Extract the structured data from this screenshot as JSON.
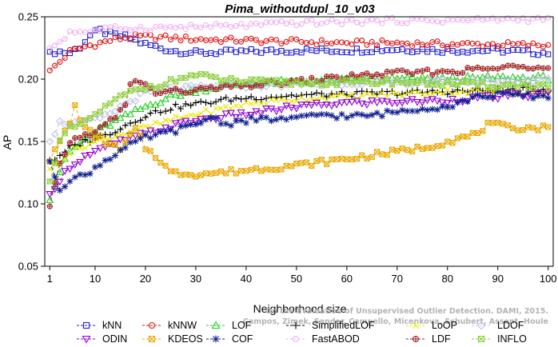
{
  "chart_data": {
    "type": "line",
    "title": "Pima_withoutdupl_10_v03",
    "xlabel": "Neighborhood size",
    "ylabel": "AP",
    "xlim": [
      0,
      101
    ],
    "ylim": [
      0.05,
      0.25
    ],
    "xticks": [
      1,
      10,
      20,
      30,
      40,
      50,
      60,
      70,
      80,
      90,
      100
    ],
    "yticks": [
      0.05,
      0.1,
      0.15,
      0.2,
      0.25
    ],
    "ytick_labels": [
      "0.05",
      "0.10",
      "0.15",
      "0.20",
      "0.25"
    ],
    "grid": false,
    "legend_position": "bottom",
    "watermark": [
      "On the Evaluation of Unsupervised Outlier Detection. DAMI, 2015.",
      "Campos, Zimek, Sander, Campello, Micenkova, Schubert, Assent, Houle"
    ],
    "series": [
      {
        "name": "kNN",
        "color": "#1f1fd0",
        "marker": "square",
        "keypoints": [
          [
            1,
            0.222
          ],
          [
            3,
            0.222
          ],
          [
            5,
            0.221
          ],
          [
            7,
            0.226
          ],
          [
            9,
            0.235
          ],
          [
            11,
            0.239
          ],
          [
            13,
            0.236
          ],
          [
            16,
            0.234
          ],
          [
            20,
            0.228
          ],
          [
            25,
            0.223
          ],
          [
            30,
            0.221
          ],
          [
            40,
            0.222
          ],
          [
            50,
            0.223
          ],
          [
            60,
            0.223
          ],
          [
            70,
            0.224
          ],
          [
            80,
            0.223
          ],
          [
            90,
            0.223
          ],
          [
            100,
            0.221
          ]
        ]
      },
      {
        "name": "kNNW",
        "color": "#e01010",
        "marker": "circle",
        "keypoints": [
          [
            1,
            0.207
          ],
          [
            3,
            0.214
          ],
          [
            5,
            0.222
          ],
          [
            8,
            0.226
          ],
          [
            11,
            0.229
          ],
          [
            14,
            0.232
          ],
          [
            17,
            0.234
          ],
          [
            20,
            0.234
          ],
          [
            30,
            0.232
          ],
          [
            40,
            0.231
          ],
          [
            50,
            0.23
          ],
          [
            60,
            0.229
          ],
          [
            70,
            0.229
          ],
          [
            80,
            0.228
          ],
          [
            90,
            0.228
          ],
          [
            100,
            0.227
          ]
        ]
      },
      {
        "name": "LOF",
        "color": "#20d020",
        "marker": "triangle-up",
        "keypoints": [
          [
            1,
            0.103
          ],
          [
            3,
            0.126
          ],
          [
            5,
            0.142
          ],
          [
            8,
            0.152
          ],
          [
            12,
            0.162
          ],
          [
            16,
            0.17
          ],
          [
            20,
            0.178
          ],
          [
            25,
            0.186
          ],
          [
            30,
            0.191
          ],
          [
            35,
            0.194
          ],
          [
            40,
            0.196
          ],
          [
            50,
            0.198
          ],
          [
            60,
            0.199
          ],
          [
            70,
            0.2
          ],
          [
            80,
            0.2
          ],
          [
            90,
            0.201
          ],
          [
            100,
            0.201
          ]
        ]
      },
      {
        "name": "SimplifiedLOF",
        "color": "#000000",
        "marker": "plus",
        "keypoints": [
          [
            1,
            0.135
          ],
          [
            3,
            0.137
          ],
          [
            5,
            0.145
          ],
          [
            8,
            0.15
          ],
          [
            12,
            0.155
          ],
          [
            16,
            0.163
          ],
          [
            20,
            0.171
          ],
          [
            25,
            0.177
          ],
          [
            30,
            0.18
          ],
          [
            35,
            0.183
          ],
          [
            40,
            0.185
          ],
          [
            50,
            0.187
          ],
          [
            60,
            0.188
          ],
          [
            70,
            0.189
          ],
          [
            80,
            0.19
          ],
          [
            90,
            0.191
          ],
          [
            100,
            0.192
          ]
        ]
      },
      {
        "name": "LoOP",
        "color": "#e8e800",
        "marker": "x",
        "keypoints": [
          [
            1,
            0.128
          ],
          [
            3,
            0.135
          ],
          [
            5,
            0.141
          ],
          [
            8,
            0.147
          ],
          [
            12,
            0.152
          ],
          [
            16,
            0.157
          ],
          [
            20,
            0.161
          ],
          [
            25,
            0.167
          ],
          [
            30,
            0.172
          ],
          [
            35,
            0.176
          ],
          [
            40,
            0.18
          ],
          [
            50,
            0.184
          ],
          [
            60,
            0.186
          ],
          [
            70,
            0.188
          ],
          [
            80,
            0.19
          ],
          [
            90,
            0.19
          ],
          [
            100,
            0.189
          ]
        ]
      },
      {
        "name": "LDOF",
        "color": "#c0c0e8",
        "marker": "diamond",
        "keypoints": [
          [
            1,
            0.15
          ],
          [
            3,
            0.165
          ],
          [
            5,
            0.165
          ],
          [
            8,
            0.165
          ],
          [
            12,
            0.17
          ],
          [
            16,
            0.18
          ],
          [
            20,
            0.189
          ],
          [
            25,
            0.192
          ],
          [
            30,
            0.193
          ],
          [
            35,
            0.194
          ],
          [
            40,
            0.195
          ],
          [
            50,
            0.196
          ],
          [
            60,
            0.197
          ],
          [
            70,
            0.197
          ],
          [
            80,
            0.198
          ],
          [
            90,
            0.199
          ],
          [
            100,
            0.2
          ]
        ]
      },
      {
        "name": "ODIN",
        "color": "#9000d0",
        "marker": "triangle-down",
        "keypoints": [
          [
            1,
            0.108
          ],
          [
            3,
            0.12
          ],
          [
            5,
            0.13
          ],
          [
            8,
            0.138
          ],
          [
            12,
            0.145
          ],
          [
            16,
            0.152
          ],
          [
            20,
            0.156
          ],
          [
            25,
            0.162
          ],
          [
            30,
            0.167
          ],
          [
            35,
            0.17
          ],
          [
            40,
            0.172
          ],
          [
            50,
            0.178
          ],
          [
            60,
            0.181
          ],
          [
            70,
            0.182
          ],
          [
            80,
            0.183
          ],
          [
            90,
            0.186
          ],
          [
            100,
            0.188
          ]
        ]
      },
      {
        "name": "KDEOS",
        "color": "#e8a800",
        "marker": "square-x",
        "keypoints": [
          [
            1,
            0.134
          ],
          [
            3,
            0.15
          ],
          [
            5,
            0.165
          ],
          [
            6,
            0.178
          ],
          [
            8,
            0.16
          ],
          [
            12,
            0.15
          ],
          [
            15,
            0.143
          ],
          [
            18,
            0.16
          ],
          [
            20,
            0.145
          ],
          [
            23,
            0.135
          ],
          [
            25,
            0.125
          ],
          [
            30,
            0.124
          ],
          [
            35,
            0.125
          ],
          [
            40,
            0.127
          ],
          [
            50,
            0.131
          ],
          [
            60,
            0.136
          ],
          [
            70,
            0.142
          ],
          [
            75,
            0.145
          ],
          [
            80,
            0.15
          ],
          [
            85,
            0.155
          ],
          [
            88,
            0.163
          ],
          [
            90,
            0.163
          ],
          [
            92,
            0.161
          ],
          [
            100,
            0.161
          ]
        ]
      },
      {
        "name": "COF",
        "color": "#102090",
        "marker": "asterisk",
        "keypoints": [
          [
            1,
            0.134
          ],
          [
            3,
            0.112
          ],
          [
            5,
            0.12
          ],
          [
            8,
            0.123
          ],
          [
            12,
            0.135
          ],
          [
            16,
            0.145
          ],
          [
            20,
            0.153
          ],
          [
            25,
            0.158
          ],
          [
            30,
            0.163
          ],
          [
            33,
            0.17
          ],
          [
            36,
            0.164
          ],
          [
            40,
            0.167
          ],
          [
            45,
            0.168
          ],
          [
            50,
            0.168
          ],
          [
            55,
            0.172
          ],
          [
            60,
            0.17
          ],
          [
            65,
            0.171
          ],
          [
            70,
            0.174
          ],
          [
            75,
            0.177
          ],
          [
            80,
            0.178
          ],
          [
            85,
            0.185
          ],
          [
            90,
            0.188
          ],
          [
            100,
            0.186
          ]
        ]
      },
      {
        "name": "FastABOD",
        "color": "#f0b0f0",
        "marker": "circle",
        "keypoints": [
          [
            1,
            0.225
          ],
          [
            3,
            0.23
          ],
          [
            5,
            0.238
          ],
          [
            8,
            0.238
          ],
          [
            12,
            0.24
          ],
          [
            16,
            0.241
          ],
          [
            20,
            0.241
          ],
          [
            30,
            0.242
          ],
          [
            40,
            0.243
          ],
          [
            50,
            0.245
          ],
          [
            60,
            0.246
          ],
          [
            70,
            0.247
          ],
          [
            80,
            0.247
          ],
          [
            90,
            0.248
          ],
          [
            100,
            0.248
          ]
        ]
      },
      {
        "name": "LDF",
        "color": "#a02020",
        "marker": "circle-plus",
        "keypoints": [
          [
            1,
            0.098
          ],
          [
            3,
            0.131
          ],
          [
            5,
            0.15
          ],
          [
            8,
            0.155
          ],
          [
            11,
            0.16
          ],
          [
            14,
            0.17
          ],
          [
            16,
            0.178
          ],
          [
            17,
            0.195
          ],
          [
            18,
            0.2
          ],
          [
            20,
            0.195
          ],
          [
            22,
            0.189
          ],
          [
            25,
            0.19
          ],
          [
            30,
            0.191
          ],
          [
            35,
            0.193
          ],
          [
            40,
            0.195
          ],
          [
            50,
            0.198
          ],
          [
            60,
            0.202
          ],
          [
            70,
            0.205
          ],
          [
            80,
            0.206
          ],
          [
            90,
            0.209
          ],
          [
            100,
            0.211
          ]
        ]
      },
      {
        "name": "INFLO",
        "color": "#90d040",
        "marker": "hourglass",
        "keypoints": [
          [
            1,
            0.118
          ],
          [
            3,
            0.15
          ],
          [
            5,
            0.16
          ],
          [
            8,
            0.165
          ],
          [
            10,
            0.172
          ],
          [
            13,
            0.18
          ],
          [
            16,
            0.188
          ],
          [
            20,
            0.193
          ],
          [
            25,
            0.198
          ],
          [
            28,
            0.202
          ],
          [
            30,
            0.203
          ],
          [
            35,
            0.2
          ],
          [
            40,
            0.198
          ],
          [
            50,
            0.197
          ],
          [
            60,
            0.197
          ],
          [
            70,
            0.198
          ],
          [
            80,
            0.196
          ],
          [
            90,
            0.195
          ],
          [
            100,
            0.195
          ]
        ]
      }
    ]
  }
}
